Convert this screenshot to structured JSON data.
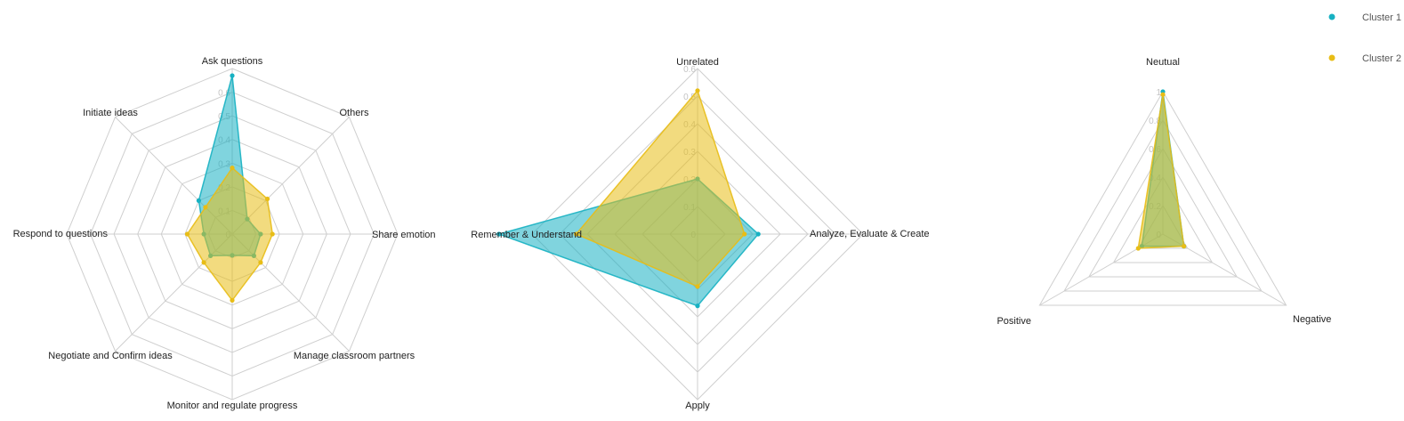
{
  "chart_data": [
    {
      "type": "radar",
      "axes": [
        "Ask questions",
        "Others",
        "Share emotion",
        "Manage classroom partners",
        "Monitor and regulate progress",
        "Negotiate and Confirm ideas",
        "Respond to questions",
        "Initiate ideas"
      ],
      "rmax": 0.7,
      "ticks": [
        "0",
        "0.1",
        "0.2",
        "0.3",
        "0.4",
        "0.5",
        "0.6"
      ],
      "tick_values": [
        0,
        0.1,
        0.2,
        0.3,
        0.4,
        0.5,
        0.6
      ],
      "series": [
        {
          "name": "Cluster 1",
          "values": [
            0.67,
            0.09,
            0.12,
            0.13,
            0.09,
            0.13,
            0.12,
            0.2
          ]
        },
        {
          "name": "Cluster 2",
          "values": [
            0.28,
            0.21,
            0.17,
            0.17,
            0.28,
            0.17,
            0.19,
            0.16
          ]
        }
      ]
    },
    {
      "type": "radar",
      "axes": [
        "Unrelated",
        "Analyze, Evaluate & Create",
        "Apply",
        "Remember & Understand"
      ],
      "rmax": 0.6,
      "ticks": [
        "0",
        "0.1",
        "0.2",
        "0.3",
        "0.4",
        "0.5",
        "0.6"
      ],
      "tick_values": [
        0,
        0.1,
        0.2,
        0.3,
        0.4,
        0.5,
        0.6
      ],
      "series": [
        {
          "name": "Cluster 1",
          "values": [
            0.2,
            0.22,
            0.26,
            0.72
          ]
        },
        {
          "name": "Cluster 2",
          "values": [
            0.52,
            0.17,
            0.19,
            0.44
          ]
        }
      ]
    },
    {
      "type": "radar",
      "axes": [
        "Neutual",
        "Negative",
        "Positive"
      ],
      "rmax": 1.0,
      "ticks": [
        "0",
        "0.2",
        "0.4",
        "0.6",
        "0.8",
        "1"
      ],
      "tick_values": [
        0,
        0.2,
        0.4,
        0.6,
        0.8,
        1.0
      ],
      "series": [
        {
          "name": "Cluster 1",
          "values": [
            1.0,
            0.17,
            0.17
          ]
        },
        {
          "name": "Cluster 2",
          "values": [
            0.98,
            0.17,
            0.2
          ]
        }
      ]
    }
  ],
  "legend": {
    "position": "top-right",
    "items": [
      {
        "label": "Cluster 1",
        "color": "#17b1c2"
      },
      {
        "label": "Cluster 2",
        "color": "#e8bd16"
      }
    ]
  },
  "colors": {
    "cluster1": "#17b1c2",
    "cluster2": "#e8bd16",
    "grid": "#cfcfcf"
  }
}
